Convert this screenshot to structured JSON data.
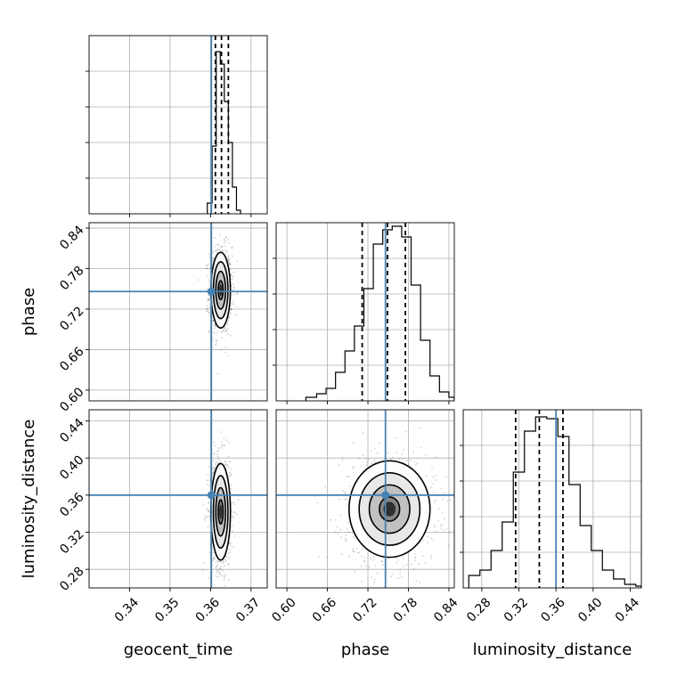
{
  "chart_data": {
    "type": "corner",
    "parameters": [
      "geocent_time",
      "phase",
      "luminosity_distance"
    ],
    "axis_labels": {
      "geocent_time": "geocent_time",
      "phase": "phase",
      "luminosity_distance": "luminosity_distance"
    },
    "ranges": {
      "geocent_time": [
        0.33,
        0.374
      ],
      "phase": [
        0.584,
        0.848
      ],
      "luminosity_distance": [
        0.26,
        0.452
      ]
    },
    "ticks": {
      "geocent_time": [
        0.34,
        0.35,
        0.36,
        0.37
      ],
      "phase": [
        0.6,
        0.66,
        0.72,
        0.78,
        0.84
      ],
      "luminosity_distance": [
        0.28,
        0.32,
        0.36,
        0.4,
        0.44
      ]
    },
    "tick_labels": {
      "geocent_time": [
        "0.34",
        "0.35",
        "0.36",
        "0.37"
      ],
      "phase": [
        "0.60",
        "0.66",
        "0.72",
        "0.78",
        "0.84"
      ],
      "luminosity_distance": [
        "0.28",
        "0.32",
        "0.36",
        "0.40",
        "0.44"
      ]
    },
    "truths": {
      "geocent_time": 0.3602,
      "phase": 0.746,
      "luminosity_distance": 0.36
    },
    "quantiles": {
      "geocent_time": [
        0.3612,
        0.3627,
        0.3644
      ],
      "phase": [
        0.7115,
        0.749,
        0.7755
      ],
      "luminosity_distance": [
        0.3165,
        0.342,
        0.3675
      ]
    },
    "histograms": {
      "geocent_time": {
        "edges": [
          0.3592,
          0.3604,
          0.3614,
          0.3624,
          0.3634,
          0.3644,
          0.3654,
          0.3664,
          0.3674
        ],
        "counts": [
          0.06,
          0.38,
          0.91,
          0.84,
          0.63,
          0.4,
          0.15,
          0.02
        ]
      },
      "phase": {
        "edges": [
          0.628,
          0.644,
          0.658,
          0.672,
          0.686,
          0.7,
          0.714,
          0.728,
          0.742,
          0.756,
          0.77,
          0.784,
          0.798,
          0.812,
          0.826,
          0.84,
          0.848
        ],
        "counts": [
          0.02,
          0.04,
          0.07,
          0.16,
          0.28,
          0.42,
          0.63,
          0.88,
          0.96,
          0.98,
          0.92,
          0.65,
          0.34,
          0.14,
          0.05,
          0.02
        ]
      },
      "luminosity_distance": {
        "edges": [
          0.266,
          0.278,
          0.29,
          0.302,
          0.314,
          0.326,
          0.338,
          0.35,
          0.362,
          0.374,
          0.386,
          0.398,
          0.41,
          0.422,
          0.434,
          0.446,
          0.452
        ],
        "counts": [
          0.07,
          0.1,
          0.21,
          0.37,
          0.65,
          0.88,
          0.96,
          0.95,
          0.85,
          0.58,
          0.35,
          0.21,
          0.1,
          0.05,
          0.02,
          0.01
        ]
      }
    },
    "joint": [
      {
        "x": "geocent_time",
        "y": "phase",
        "center": [
          0.3625,
          0.748
        ],
        "sigma": [
          0.0012,
          0.028
        ],
        "contour_levels_sigma": [
          0.5,
          1.0,
          1.5,
          2.0
        ]
      },
      {
        "x": "geocent_time",
        "y": "luminosity_distance",
        "center": [
          0.3625,
          0.342
        ],
        "sigma": [
          0.0012,
          0.026
        ],
        "contour_levels_sigma": [
          0.5,
          1.0,
          1.5,
          2.0
        ]
      },
      {
        "x": "phase",
        "y": "luminosity_distance",
        "center": [
          0.752,
          0.345
        ],
        "sigma": [
          0.03,
          0.026
        ],
        "contour_levels_sigma": [
          0.5,
          1.0,
          1.5,
          2.0
        ]
      }
    ],
    "grid": true
  }
}
